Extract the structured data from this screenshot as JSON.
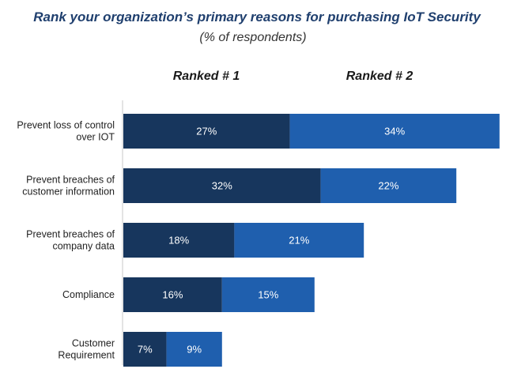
{
  "chart_data": {
    "type": "bar",
    "orientation": "horizontal",
    "stacked": true,
    "title": "Rank your organization’s  primary reasons for purchasing IoT Security",
    "subtitle": "(% of respondents)",
    "categories": [
      [
        "Prevent loss of control",
        "over IOT"
      ],
      [
        "Prevent breaches of",
        "customer information"
      ],
      [
        "Prevent breaches of",
        "company data"
      ],
      [
        "Compliance"
      ],
      [
        "Customer",
        "Requirement"
      ]
    ],
    "series": [
      {
        "name": "Ranked # 1",
        "color": "#17365d",
        "values": [
          27,
          32,
          18,
          16,
          7
        ],
        "labels": [
          "27%",
          "32%",
          "18%",
          "16%",
          "7%"
        ]
      },
      {
        "name": "Ranked # 2",
        "color": "#1f5fae",
        "values": [
          34,
          22,
          21,
          15,
          9
        ],
        "labels": [
          "34%",
          "22%",
          "21%",
          "15%",
          "9%"
        ]
      }
    ],
    "xlim": [
      0,
      61
    ],
    "grid": false,
    "legend": "top"
  }
}
